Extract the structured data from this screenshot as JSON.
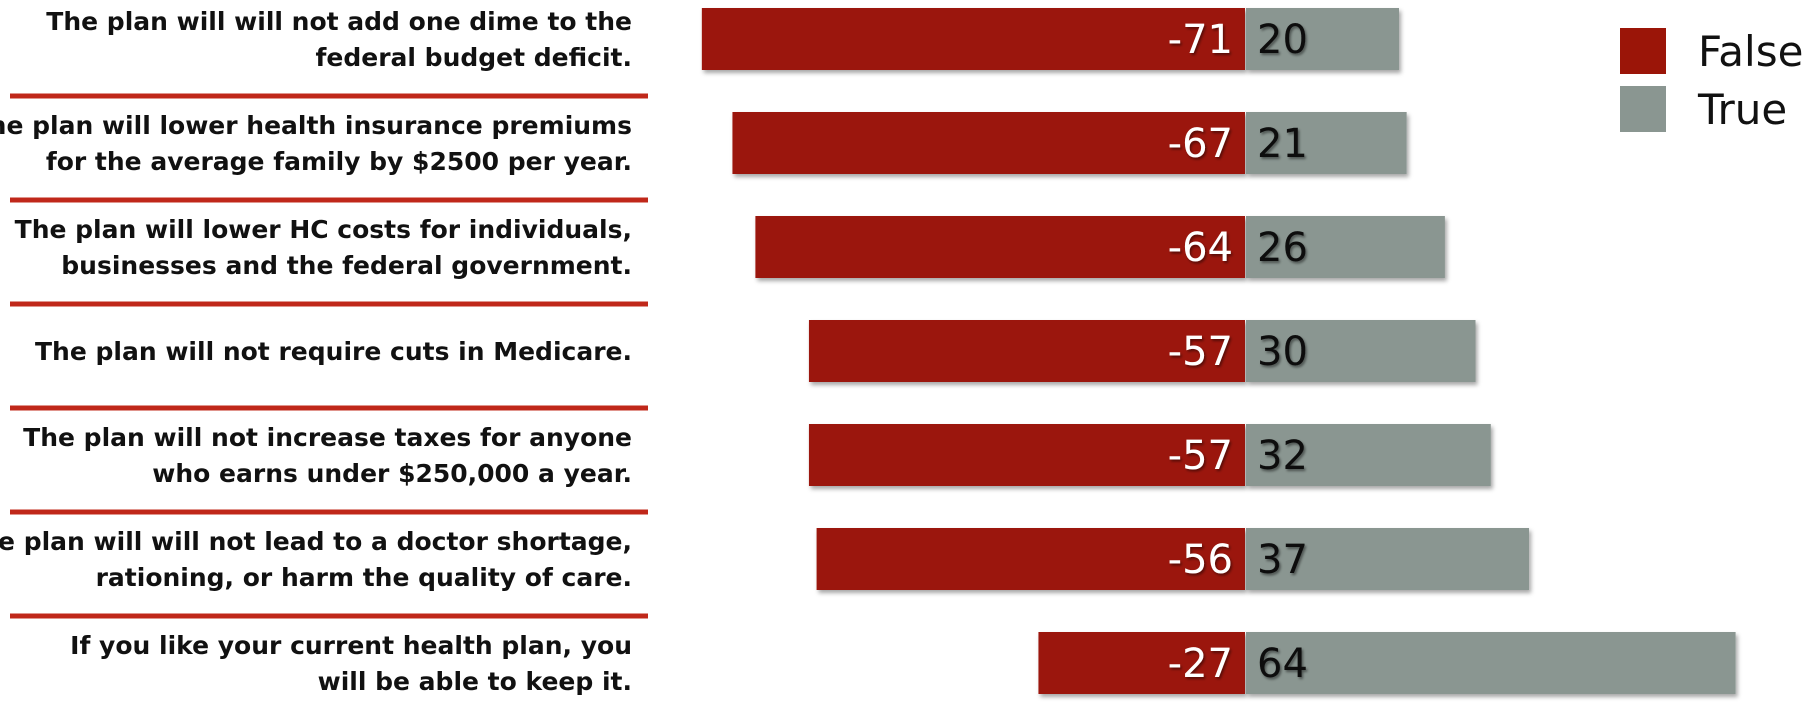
{
  "chart_data": {
    "type": "bar",
    "orientation": "horizontal-diverging",
    "categories": [
      [
        "The plan will will not add one dime to the",
        "federal budget deficit."
      ],
      [
        "The plan will lower health insurance premiums",
        "for the average family by $2500 per year."
      ],
      [
        "The plan will lower HC costs for individuals,",
        "businesses and the federal government."
      ],
      [
        "The plan will not require cuts in Medicare."
      ],
      [
        "The plan will not increase taxes for anyone",
        "who earns under $250,000 a year."
      ],
      [
        "The plan will will not lead to a doctor shortage,",
        "rationing, or harm the quality of care."
      ],
      [
        "If you like your current health plan, you",
        "will be able to keep it."
      ]
    ],
    "series": [
      {
        "name": "False",
        "color": "#9b1508",
        "values": [
          -71,
          -67,
          -64,
          -57,
          -57,
          -56,
          -27
        ]
      },
      {
        "name": "True",
        "color": "#8a9691",
        "values": [
          20,
          21,
          26,
          30,
          32,
          37,
          64
        ]
      }
    ],
    "legend": {
      "position": "top-right",
      "entries": [
        {
          "label": "False",
          "color": "#9b1508"
        },
        {
          "label": "True",
          "color": "#8a9691"
        }
      ]
    },
    "separator_color": "#c0281a",
    "title": "",
    "xlabel": "",
    "ylabel": "",
    "xlim": [
      -71,
      64
    ],
    "grid": false
  }
}
